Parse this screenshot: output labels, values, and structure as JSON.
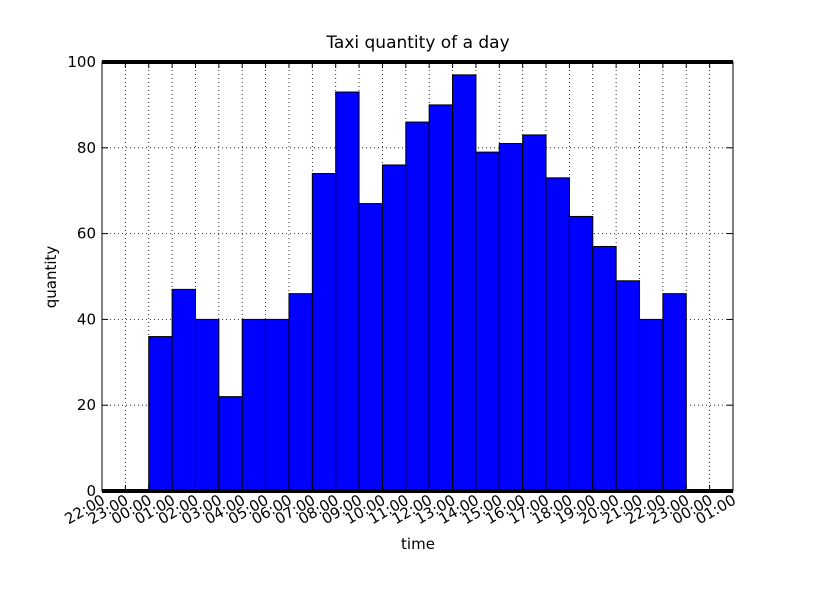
{
  "chart_data": {
    "type": "bar",
    "title": "Taxi quantity of a day",
    "xlabel": "time",
    "ylabel": "quantity",
    "ylim": [
      0,
      100
    ],
    "yticks": [
      0,
      20,
      40,
      60,
      80,
      100
    ],
    "grid": true,
    "legend": "none",
    "tick_labels": [
      "22:00",
      "23:00",
      "00:00",
      "01:00",
      "02:00",
      "03:00",
      "04:00",
      "05:00",
      "06:00",
      "07:00",
      "08:00",
      "09:00",
      "10:00",
      "11:00",
      "12:00",
      "13:00",
      "14:00",
      "15:00",
      "16:00",
      "17:00",
      "18:00",
      "19:00",
      "20:00",
      "21:00",
      "22:00",
      "23:00",
      "00:00",
      "01:00"
    ],
    "categories": [
      "00:00",
      "01:00",
      "02:00",
      "03:00",
      "04:00",
      "05:00",
      "06:00",
      "07:00",
      "08:00",
      "09:00",
      "10:00",
      "11:00",
      "12:00",
      "13:00",
      "14:00",
      "15:00",
      "16:00",
      "17:00",
      "18:00",
      "19:00",
      "20:00",
      "21:00",
      "22:00",
      "23:00"
    ],
    "values": [
      36,
      47,
      40,
      22,
      40,
      40,
      46,
      74,
      93,
      67,
      76,
      86,
      90,
      97,
      79,
      81,
      83,
      73,
      64,
      57,
      49,
      40,
      46,
      0
    ],
    "bar_color": "#0000ff"
  }
}
